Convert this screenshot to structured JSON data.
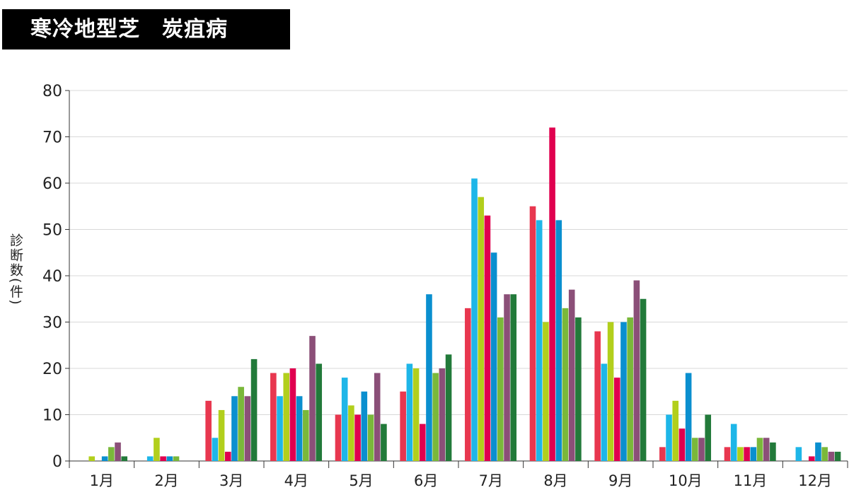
{
  "title": "寒冷地型芝　炭疽病",
  "chart_data": {
    "type": "bar",
    "title": "寒冷地型芝　炭疽病",
    "xlabel": "",
    "ylabel": "診断数(件)",
    "ylim": [
      0,
      80
    ],
    "yticks": [
      0,
      10,
      20,
      30,
      40,
      50,
      60,
      70,
      80
    ],
    "grid": true,
    "legend": "none",
    "categories": [
      "1月",
      "2月",
      "3月",
      "4月",
      "5月",
      "6月",
      "7月",
      "8月",
      "9月",
      "10月",
      "11月",
      "12月"
    ],
    "series": [
      {
        "color": "#e8374f",
        "values": [
          0,
          0,
          13,
          19,
          10,
          15,
          33,
          55,
          28,
          3,
          3,
          0
        ]
      },
      {
        "color": "#1eb6e8",
        "values": [
          0,
          1,
          5,
          14,
          18,
          21,
          61,
          52,
          21,
          10,
          8,
          3
        ]
      },
      {
        "color": "#b2cf1c",
        "values": [
          1,
          5,
          11,
          19,
          12,
          20,
          57,
          30,
          30,
          13,
          3,
          0
        ]
      },
      {
        "color": "#e0004f",
        "values": [
          0,
          1,
          2,
          20,
          10,
          8,
          53,
          72,
          18,
          7,
          3,
          1
        ]
      },
      {
        "color": "#0a8fcf",
        "values": [
          1,
          1,
          14,
          14,
          15,
          36,
          45,
          52,
          30,
          19,
          3,
          4
        ]
      },
      {
        "color": "#7ab83a",
        "values": [
          3,
          1,
          16,
          11,
          10,
          19,
          31,
          33,
          31,
          5,
          5,
          3
        ]
      },
      {
        "color": "#8b4f78",
        "values": [
          4,
          0,
          14,
          27,
          19,
          20,
          36,
          37,
          39,
          5,
          5,
          2
        ]
      },
      {
        "color": "#227a3a",
        "values": [
          1,
          0,
          22,
          21,
          8,
          23,
          36,
          31,
          35,
          10,
          4,
          2
        ]
      }
    ]
  }
}
